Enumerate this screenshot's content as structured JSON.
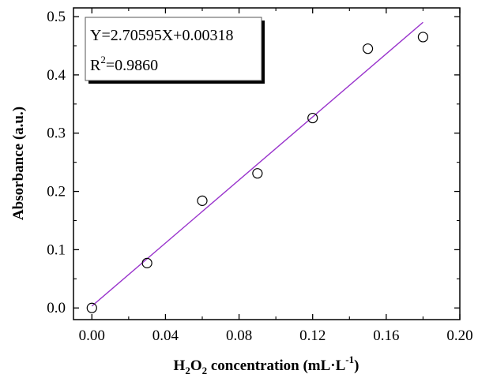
{
  "chart_data": {
    "type": "scatter",
    "title": "",
    "xlabel": {
      "prefix": "H",
      "sub1": "2",
      "mid": "O",
      "sub2": "2",
      "rest": " concentration (mL·L",
      "sup": "-1",
      "end": ")"
    },
    "ylabel": "Absorbance (a.u.)",
    "xlim": [
      -0.01,
      0.2
    ],
    "ylim": [
      -0.02,
      0.515
    ],
    "xticks": [
      "0.00",
      "0.04",
      "0.08",
      "0.12",
      "0.16",
      "0.20"
    ],
    "yticks": [
      "0.0",
      "0.1",
      "0.2",
      "0.3",
      "0.4",
      "0.5"
    ],
    "grid": false,
    "series": [
      {
        "marker": "open-circle",
        "x": [
          0.0,
          0.03,
          0.06,
          0.09,
          0.12,
          0.15,
          0.18
        ],
        "y": [
          0.0,
          0.077,
          0.184,
          0.231,
          0.326,
          0.445,
          0.465
        ]
      }
    ],
    "fit": {
      "slope": 2.70595,
      "intercept": 0.00318,
      "x_range": [
        0.0,
        0.18
      ],
      "color": "#9933cc"
    },
    "annotation": {
      "equation": "Y=2.70595X+0.00318",
      "r2_prefix": "R",
      "r2_sup": "2",
      "r2_value": "=0.9860"
    }
  }
}
